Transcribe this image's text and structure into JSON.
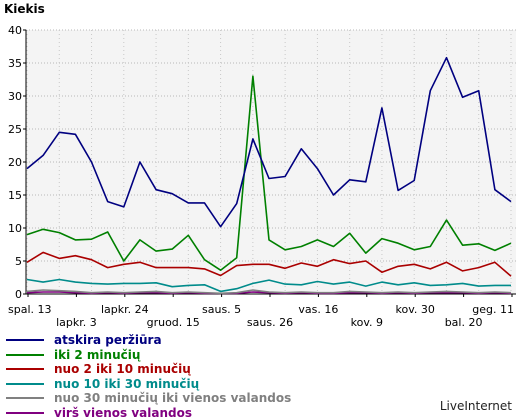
{
  "chart_data": {
    "type": "line",
    "title": "Kiekis",
    "ylim": [
      0,
      40
    ],
    "yticks": [
      0,
      5,
      10,
      15,
      20,
      25,
      30,
      35,
      40
    ],
    "grid": true,
    "legend_position": "bottom-left",
    "x_tick_labels_row1": [
      "spal. 13",
      "lapkr. 24",
      "saus. 5",
      "vas. 16",
      "kov. 30",
      "geg. 11"
    ],
    "x_tick_labels_row2": [
      "lapkr. 3",
      "gruod. 15",
      "saus. 26",
      "kov. 9",
      "bal. 20"
    ],
    "series": [
      {
        "name": "atskira peržiūra",
        "color": "#000080",
        "values": [
          19,
          21,
          24.5,
          24.2,
          20,
          14,
          13.2,
          20,
          15.8,
          15.2,
          13.8,
          13.8,
          10.2,
          13.7,
          23.5,
          17.5,
          17.8,
          22,
          19,
          15,
          17.3,
          17,
          28.2,
          15.7,
          17.2,
          30.8,
          35.8,
          29.8,
          30.8,
          15.8,
          14
        ]
      },
      {
        "name": "iki 2 minučių",
        "color": "#008000",
        "values": [
          9,
          9.8,
          9.3,
          8.2,
          8.3,
          9.4,
          5,
          8.2,
          6.5,
          6.8,
          8.9,
          5.2,
          3.6,
          5.5,
          33,
          8.2,
          6.7,
          7.2,
          8.2,
          7.2,
          9.2,
          6.2,
          8.4,
          7.7,
          6.7,
          7.2,
          11.2,
          7.4,
          7.6,
          6.6,
          7.7
        ]
      },
      {
        "name": "nuo 2 iki 10 minučių",
        "color": "#aa0000",
        "values": [
          4.8,
          6.3,
          5.4,
          5.8,
          5.2,
          4,
          4.5,
          4.8,
          4,
          4,
          4,
          3.8,
          2.8,
          4.3,
          4.5,
          4.5,
          3.9,
          4.7,
          4.2,
          5.2,
          4.6,
          5,
          3.3,
          4.2,
          4.5,
          3.8,
          4.8,
          3.5,
          4,
          4.8,
          2.7
        ]
      },
      {
        "name": "nuo 10 iki 30 minučių",
        "color": "#008b8b",
        "values": [
          2.2,
          1.8,
          2.2,
          1.8,
          1.6,
          1.5,
          1.6,
          1.6,
          1.7,
          1.1,
          1.3,
          1.4,
          0.4,
          0.8,
          1.6,
          2.1,
          1.5,
          1.4,
          1.9,
          1.5,
          1.8,
          1.2,
          1.8,
          1.4,
          1.7,
          1.3,
          1.4,
          1.6,
          1.2,
          1.3,
          1.3
        ]
      },
      {
        "name": "nuo 30 minučių iki vienos valandos",
        "color": "#808080",
        "values": [
          0.4,
          0.6,
          0.5,
          0.4,
          0.2,
          0.3,
          0.2,
          0.3,
          0.4,
          0.2,
          0.3,
          0.2,
          0.1,
          0.2,
          0.6,
          0.3,
          0.2,
          0.3,
          0.2,
          0.2,
          0.4,
          0.3,
          0.2,
          0.3,
          0.2,
          0.3,
          0.4,
          0.3,
          0.2,
          0.3,
          0.2
        ]
      },
      {
        "name": "virš vienos valandos",
        "color": "#800080",
        "values": [
          0.2,
          0.3,
          0.3,
          0.2,
          0.1,
          0.2,
          0.1,
          0.2,
          0.2,
          0.1,
          0.2,
          0.1,
          0.1,
          0.1,
          0.3,
          0.2,
          0.1,
          0.2,
          0.1,
          0.1,
          0.2,
          0.2,
          0.1,
          0.2,
          0.1,
          0.2,
          0.2,
          0.2,
          0.1,
          0.2,
          0.1
        ]
      }
    ]
  },
  "brand": "LiveInternet"
}
